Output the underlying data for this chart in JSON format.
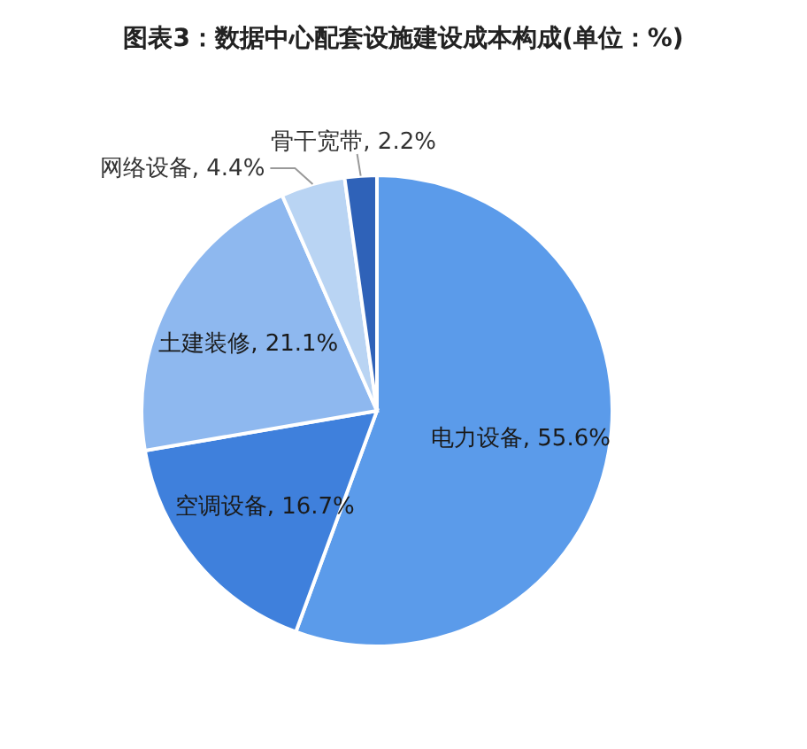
{
  "chart_data": {
    "type": "pie",
    "title": "图表3：数据中心配套设施建设成本构成(单位：%)",
    "categories": [
      "电力设备",
      "空调设备",
      "土建装修",
      "网络设备",
      "骨干宽带"
    ],
    "values": [
      55.6,
      16.7,
      21.1,
      4.4,
      2.2
    ],
    "colors": [
      "#5b9bea",
      "#3f80dc",
      "#8eb8ef",
      "#b9d4f3",
      "#2f62b8"
    ],
    "value_labels": [
      ", 55.6%",
      ", 16.7%",
      ", 21.1%",
      ", 4.4%",
      ", 2.2%"
    ]
  }
}
